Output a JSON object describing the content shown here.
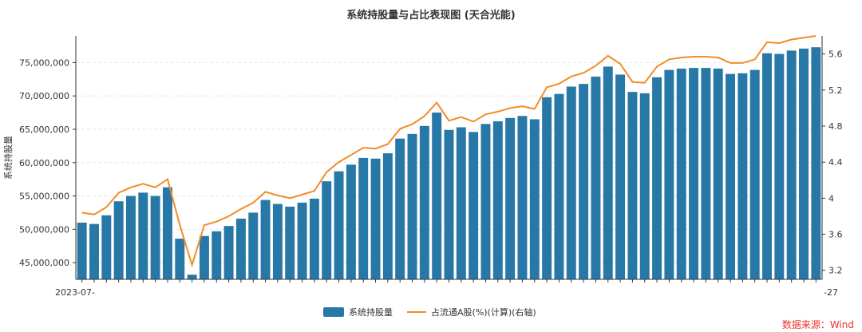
{
  "colors": {
    "bar": "#2878a7",
    "line": "#f28c28",
    "axis": "#333333",
    "grid": "#e6e6e6",
    "source": "#e8312b"
  },
  "source_text": "数据来源：Wind",
  "chart_data": {
    "type": "bar",
    "title": "系统持股量与占比表现图 (天合光能)",
    "ylabel": "系统持股量",
    "y2label": "",
    "ylim": [
      42500000,
      79000000
    ],
    "y2lim": [
      3.1,
      5.8
    ],
    "y_ticks": [
      45000000,
      50000000,
      55000000,
      60000000,
      65000000,
      70000000,
      75000000
    ],
    "y_tick_labels": [
      "45,000,000",
      "50,000,000",
      "55,000,000",
      "60,000,000",
      "65,000,000",
      "70,000,000",
      "75,000,000"
    ],
    "y2_ticks": [
      3.2,
      3.6,
      4.0,
      4.4,
      4.8,
      5.2,
      5.6
    ],
    "y2_tick_labels": [
      "3.2",
      "3.6",
      "4",
      "4.4",
      "4.8",
      "5.2",
      "5.6"
    ],
    "x_tick_labels_visible": [
      "2023-07-",
      "-27"
    ],
    "legend": {
      "placement": "bottom-center"
    },
    "grid": true,
    "series": [
      {
        "name": "系统持股量",
        "type": "bar",
        "values": [
          51000000,
          50800000,
          52100000,
          54200000,
          55000000,
          55500000,
          55000000,
          56300000,
          48600000,
          43200000,
          49000000,
          49700000,
          50500000,
          51600000,
          52500000,
          54400000,
          53800000,
          53400000,
          54000000,
          54600000,
          57200000,
          58700000,
          59700000,
          60700000,
          60600000,
          61400000,
          63600000,
          64300000,
          65500000,
          67500000,
          64900000,
          65300000,
          64600000,
          65800000,
          66200000,
          66700000,
          67000000,
          66500000,
          69800000,
          70300000,
          71400000,
          71800000,
          72900000,
          74400000,
          73200000,
          70600000,
          70400000,
          72800000,
          73900000,
          74100000,
          74200000,
          74200000,
          74100000,
          73300000,
          73400000,
          73900000,
          76400000,
          76300000,
          76800000,
          77100000,
          77300000
        ]
      },
      {
        "name": "占流通A股(%)(计算)(右轴)",
        "type": "line",
        "axis": "right",
        "values": [
          3.84,
          3.82,
          3.9,
          4.06,
          4.12,
          4.16,
          4.12,
          4.21,
          3.7,
          3.26,
          3.7,
          3.74,
          3.8,
          3.88,
          3.95,
          4.07,
          4.03,
          4.0,
          4.04,
          4.08,
          4.29,
          4.4,
          4.48,
          4.56,
          4.55,
          4.6,
          4.77,
          4.82,
          4.91,
          5.06,
          4.86,
          4.9,
          4.85,
          4.93,
          4.96,
          5.0,
          5.02,
          4.99,
          5.23,
          5.27,
          5.35,
          5.39,
          5.47,
          5.58,
          5.49,
          5.29,
          5.28,
          5.46,
          5.54,
          5.56,
          5.57,
          5.57,
          5.56,
          5.5,
          5.5,
          5.54,
          5.73,
          5.72,
          5.76,
          5.78,
          5.8
        ]
      }
    ]
  }
}
